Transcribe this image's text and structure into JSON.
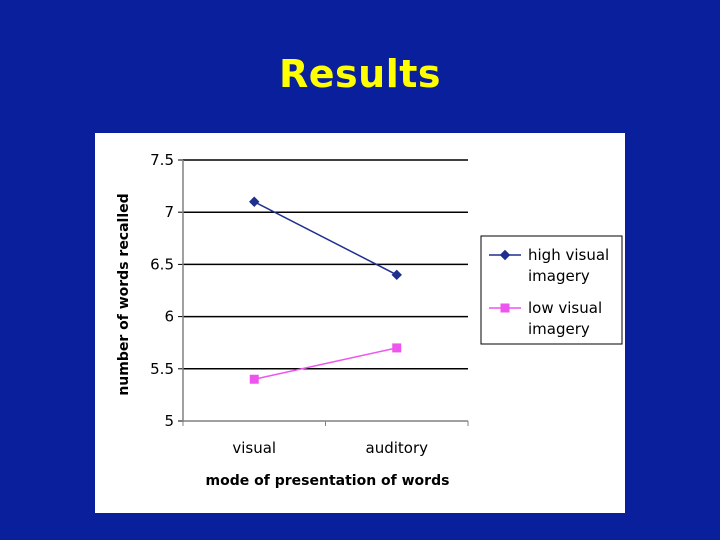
{
  "slide": {
    "title": "Results"
  },
  "chart_data": {
    "type": "line",
    "categories": [
      "visual",
      "auditory"
    ],
    "series": [
      {
        "name": "high visual imagery",
        "values": [
          7.1,
          6.4
        ],
        "color": "#1f2f8f",
        "marker": "diamond"
      },
      {
        "name": "low visual imagery",
        "values": [
          5.4,
          5.7
        ],
        "color": "#ee55ee",
        "marker": "square"
      }
    ],
    "xlabel": "mode of presentation of words",
    "ylabel": "number of words recalled",
    "ylim": [
      5,
      7.5
    ],
    "yticks": [
      "7.5",
      "7",
      "6.5",
      "6",
      "5.5",
      "5"
    ],
    "grid": true,
    "legend_position": "right"
  }
}
